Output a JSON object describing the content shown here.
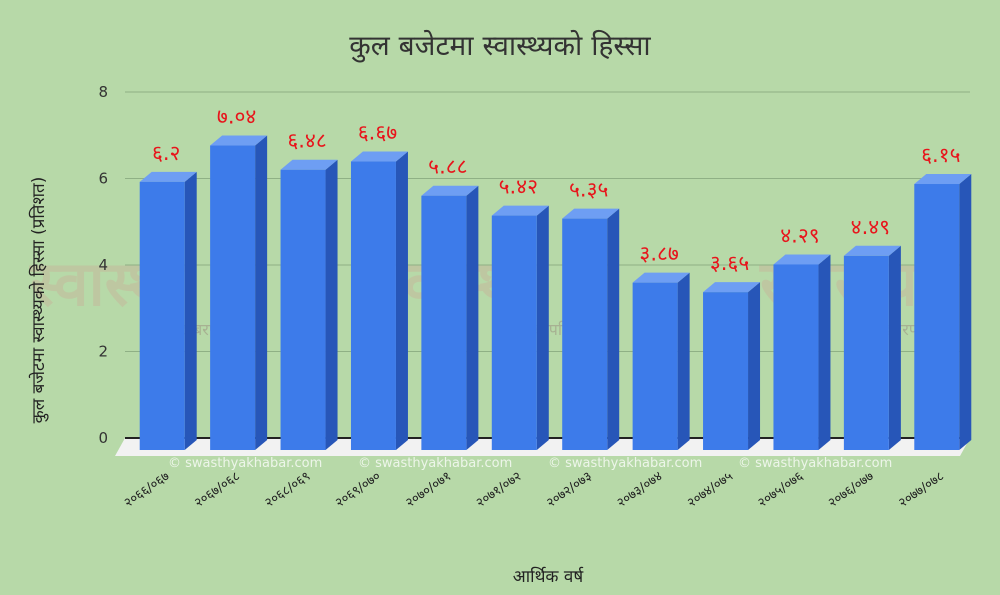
{
  "chart_data": {
    "type": "bar",
    "title": "कुल बजेटमा स्वास्थ्यको हिस्सा",
    "xlabel": "आर्थिक वर्ष",
    "ylabel": "कुल बजेटमा स्वास्थ्यको हिस्सा (प्रतिशत)",
    "ylim": [
      0,
      8
    ],
    "yticks": [
      "0",
      "2",
      "4",
      "6",
      "8"
    ],
    "grid": true,
    "legend": "none",
    "categories": [
      "२०६६/०६७",
      "२०६७/०६८",
      "२०६८/०६९",
      "२०६९/०७०",
      "२०७०/०७१",
      "२०७१/०७२",
      "२०७२/०७३",
      "२०७३/०७४",
      "२०७४/०७५",
      "२०७५/०७६",
      "२०७६/०७७",
      "२०७७/०७८"
    ],
    "values": [
      6.2,
      7.04,
      6.48,
      6.67,
      5.88,
      5.42,
      5.35,
      3.87,
      3.65,
      4.29,
      4.49,
      6.15
    ],
    "data_labels": [
      "६.२",
      "७.०४",
      "६.४८",
      "६.६७",
      "५.८८",
      "५.४२",
      "५.३५",
      "३.८७",
      "३.६५",
      "४.२९",
      "४.४९",
      "६.१५"
    ],
    "colors": {
      "bar_front": "#3d7bea",
      "bar_top": "#6e9ef3",
      "bar_side": "#2756b8",
      "label": "#e8141b"
    }
  },
  "watermark": {
    "logo_text": "स्वास्थ्य",
    "logo_sub": "खबरपत्रिका",
    "footer": "© swasthyakhabar.com"
  }
}
